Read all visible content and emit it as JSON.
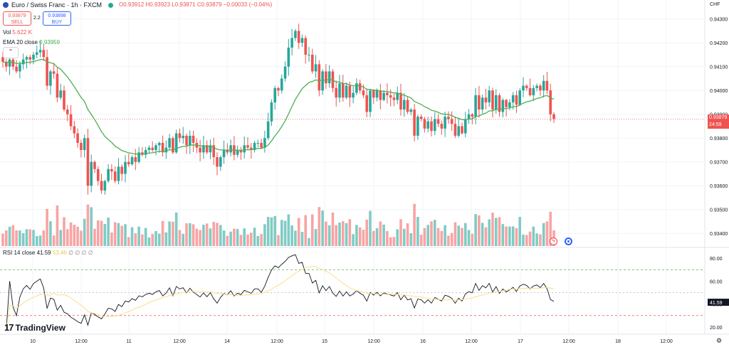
{
  "header": {
    "symbol": "Euro / Swiss Franc · 1h · FXCM",
    "ohlc_label": "O0.93912 H0.93923 L0.93871 C0.93879 −0.00033 (−0.04%)",
    "sell_price": "0.93879",
    "sell_label": "SELL",
    "spread": "2.2",
    "buy_price": "0.93898",
    "buy_label": "BUY"
  },
  "indicators": {
    "vol_label": "Vol",
    "vol_value": "5.622 K",
    "ema_label": "EMA 20 close",
    "ema_value": "0.93959",
    "rsi_label": "RSI 14 close",
    "rsi_value": "41.59",
    "rsi_ma_value": "53.46",
    "rsi_extra": "∅ ∅ ∅ ∅"
  },
  "price_axis": {
    "currency": "CHF",
    "last_price": "0.93879",
    "countdown": "24:59"
  },
  "branding": {
    "logo_text": "TradingView",
    "logo_mark": "17"
  },
  "icons": {
    "bolt": "bolt-icon",
    "target": "target-icon",
    "settings": "gear-icon"
  },
  "colors": {
    "up": "#26a69a",
    "down": "#ef5350",
    "ema": "#4caf50",
    "rsi": "#131722",
    "rsi_ma": "#f7e08a",
    "vol_up": "#80cbc4",
    "vol_down": "#f8a4a4"
  },
  "chart_data": {
    "type": "candlestick",
    "instrument": "Euro / Swiss Franc",
    "timeframe": "1h",
    "ylim": [
      0.9335,
      0.9432
    ],
    "y_ticks": [
      "0.94300",
      "0.94200",
      "0.94100",
      "0.94000",
      "0.93900",
      "0.93800",
      "0.93700",
      "0.93600",
      "0.93500",
      "0.93400"
    ],
    "x_ticks": [
      "10",
      "12:00",
      "11",
      "12:00",
      "14",
      "12:00",
      "15",
      "12:00",
      "16",
      "12:00",
      "17",
      "12:00",
      "18",
      "12:00"
    ],
    "candles_close": [
      0.9412,
      0.941,
      0.9413,
      0.941,
      0.9408,
      0.9411,
      0.9413,
      0.9414,
      0.9413,
      0.9415,
      0.9416,
      0.9417,
      0.9414,
      0.9402,
      0.9408,
      0.9407,
      0.9397,
      0.94,
      0.9392,
      0.939,
      0.9385,
      0.9382,
      0.9378,
      0.9375,
      0.938,
      0.936,
      0.937,
      0.9367,
      0.9362,
      0.9358,
      0.9362,
      0.9367,
      0.9366,
      0.9362,
      0.9368,
      0.9365,
      0.937,
      0.9369,
      0.9372,
      0.937,
      0.9374,
      0.9373,
      0.9375,
      0.9376,
      0.9375,
      0.9377,
      0.9378,
      0.9374,
      0.9376,
      0.938,
      0.9374,
      0.9382,
      0.938,
      0.9381,
      0.9377,
      0.9381,
      0.9378,
      0.9376,
      0.9374,
      0.9377,
      0.9374,
      0.9377,
      0.9372,
      0.9368,
      0.9372,
      0.9375,
      0.9374,
      0.9377,
      0.9373,
      0.9375,
      0.9374,
      0.9377,
      0.9376,
      0.9375,
      0.9378,
      0.9378,
      0.9376,
      0.938,
      0.9387,
      0.9395,
      0.9401,
      0.94,
      0.9405,
      0.941,
      0.9418,
      0.9422,
      0.9425,
      0.942,
      0.9422,
      0.9415,
      0.9415,
      0.9408,
      0.9411,
      0.94,
      0.9408,
      0.9403,
      0.9408,
      0.9401,
      0.9397,
      0.9403,
      0.9397,
      0.9402,
      0.9397,
      0.9399,
      0.9403,
      0.94,
      0.9398,
      0.9391,
      0.94,
      0.9397,
      0.94,
      0.9396,
      0.9399,
      0.9398,
      0.9397,
      0.9396,
      0.9399,
      0.9392,
      0.9396,
      0.9391,
      0.9392,
      0.9381,
      0.9389,
      0.9388,
      0.9384,
      0.9387,
      0.9383,
      0.9388,
      0.9386,
      0.9384,
      0.9389,
      0.9388,
      0.9386,
      0.9381,
      0.9385,
      0.9382,
      0.9388,
      0.939,
      0.9389,
      0.9398,
      0.9392,
      0.9397,
      0.9395,
      0.94,
      0.9392,
      0.9398,
      0.9391,
      0.9396,
      0.9393,
      0.9395,
      0.9398,
      0.9394,
      0.94,
      0.9402,
      0.9401,
      0.9398,
      0.9401,
      0.9402,
      0.94,
      0.9404,
      0.94,
      0.939,
      0.9388
    ],
    "ema20_close": 0.93959,
    "rsi": {
      "ylim": [
        15,
        85
      ],
      "ticks": [
        80,
        60,
        40,
        20
      ],
      "upper_band": 70,
      "mid": 50,
      "lower_band": 30,
      "last": 41.59,
      "ma_last": 53.46
    }
  }
}
